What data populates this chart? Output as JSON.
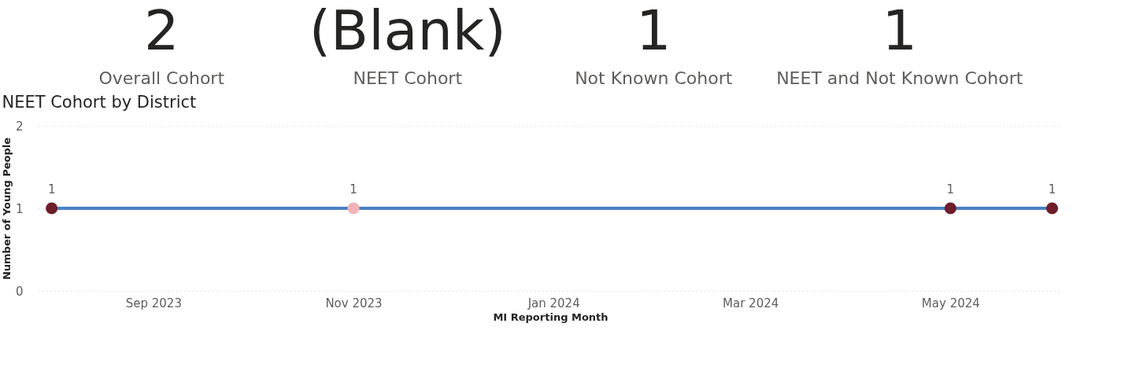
{
  "chart_data": [
    {
      "type": "other",
      "categories": [
        "Overall Cohort",
        "NEET Cohort",
        "Not Known Cohort",
        "NEET and Not Known Cohort"
      ],
      "value_labels": [
        "2",
        "(Blank)",
        "1",
        "1"
      ]
    },
    {
      "type": "line",
      "title": "NEET Cohort by District",
      "xlabel": "MI Reporting Month",
      "ylabel": "Number of Young People",
      "x": [
        "2023-08-01",
        "2023-11-01",
        "2024-05-01",
        "2024-06-01"
      ],
      "series": [
        {
          "color": "#4a80c4",
          "values": [
            1,
            1,
            1,
            1
          ],
          "colors": [
            "#6e1e2a",
            "#f0b4b8",
            "#6e1e2a",
            "#6e1e2a"
          ]
        }
      ],
      "xlim": [
        "2023-07-28",
        "2024-06-04"
      ],
      "xticks": [
        {
          "value": "2023-09-01",
          "label": "Sep 2023"
        },
        {
          "value": "2023-11-01",
          "label": "Nov 2023"
        },
        {
          "value": "2024-01-01",
          "label": "Jan 2024"
        },
        {
          "value": "2024-03-01",
          "label": "Mar 2024"
        },
        {
          "value": "2024-05-01",
          "label": "May 2024"
        }
      ],
      "ylim": [
        0,
        2
      ],
      "yticks": [
        0,
        1,
        2
      ],
      "grid": "y",
      "marker": "circle",
      "line_style": "solid",
      "data_labels": true
    }
  ]
}
